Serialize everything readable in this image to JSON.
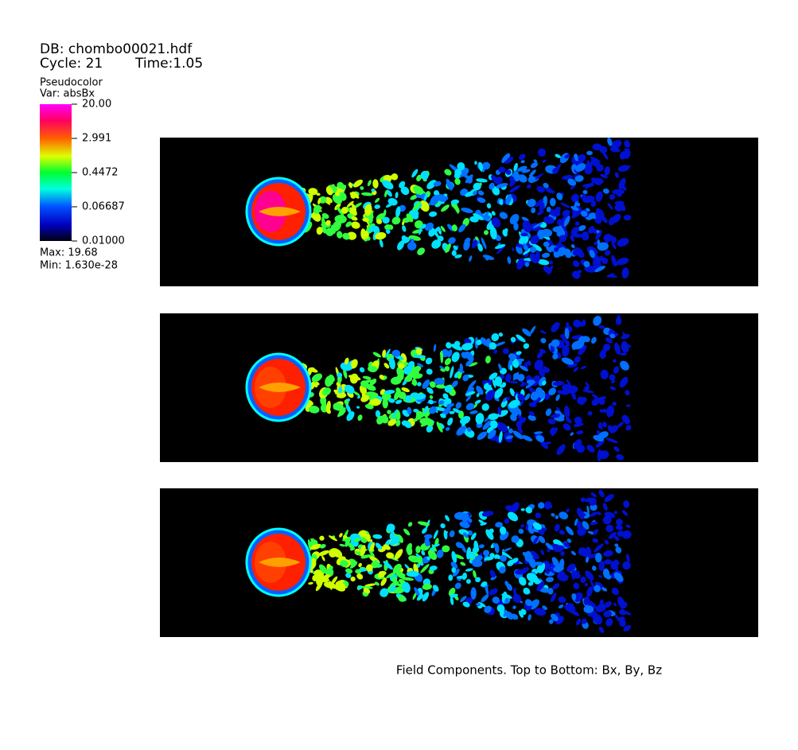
{
  "header": {
    "db": "DB: chombo00021.hdf",
    "cycle": "Cycle: 21",
    "time": "Time:1.05"
  },
  "legend": {
    "plot": "Pseudocolor",
    "var": "Var: absBx",
    "labels": [
      "20.00",
      "2.991",
      "0.4472",
      "0.06687",
      "0.01000"
    ],
    "max": "Max:  19.68",
    "min": "Min:  1.630e-28"
  },
  "caption": "Field Components. Top to Bottom: Bx, By, Bz"
}
